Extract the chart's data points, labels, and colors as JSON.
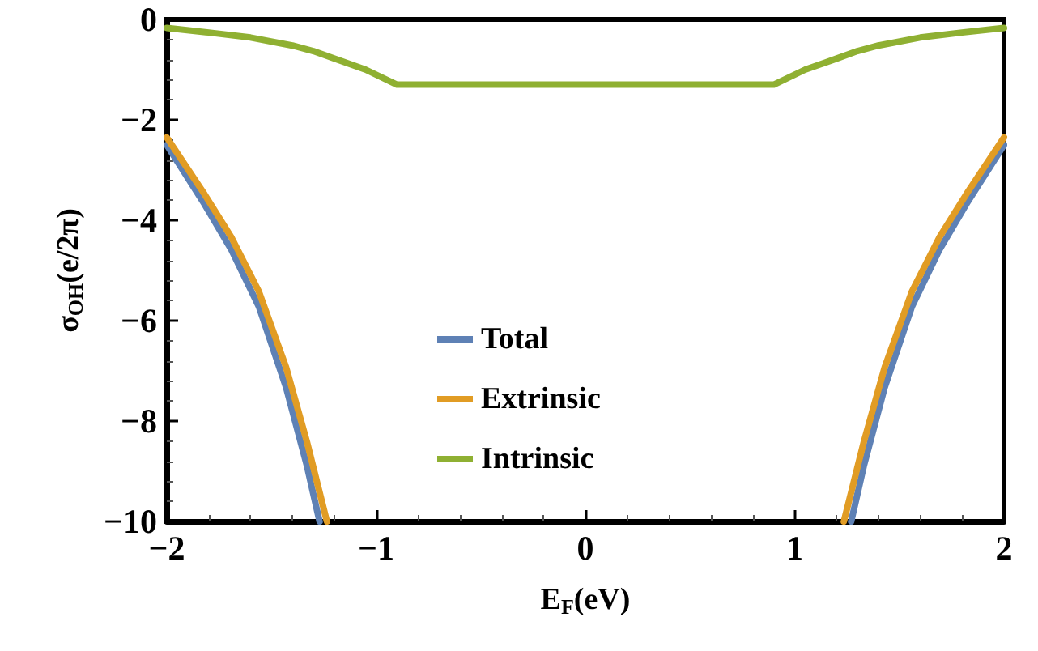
{
  "chart_data": {
    "type": "line",
    "xlabel": "E$_{F}$(eV)",
    "ylabel": "σ$_{OH}$(e/2π)",
    "xlim": [
      -2,
      2
    ],
    "xticks": [
      -2,
      -1,
      0,
      1,
      2
    ],
    "ylim": [
      -10,
      0
    ],
    "yticks": [
      -10,
      -8,
      -6,
      -4,
      -2,
      0
    ],
    "grid": false,
    "legend": "bottom",
    "marker": "none",
    "line_style": "solid",
    "series": [
      {
        "name": "Total",
        "color": "#5e81b5",
        "x": [
          -2,
          -1.82,
          -1.69,
          -1.56,
          -1.43,
          -1.33,
          -1.27,
          0,
          1.27,
          1.33,
          1.43,
          1.56,
          1.69,
          1.82,
          2
        ],
        "values": [
          -2.5,
          -3.68,
          -4.6,
          -5.72,
          -7.33,
          -8.9,
          -10,
          null,
          -10,
          -8.9,
          -7.33,
          -5.72,
          -4.6,
          -3.68,
          -2.5
        ]
      },
      {
        "name": "Extrinsic",
        "color": "#e19c24",
        "x": [
          -2,
          -1.82,
          -1.69,
          -1.56,
          -1.43,
          -1.33,
          -1.235,
          0,
          1.235,
          1.33,
          1.43,
          1.56,
          1.69,
          1.82,
          2
        ],
        "values": [
          -2.35,
          -3.48,
          -4.35,
          -5.42,
          -6.93,
          -8.42,
          -10,
          null,
          -10,
          -8.42,
          -6.93,
          -5.42,
          -4.35,
          -3.48,
          -2.35
        ]
      },
      {
        "name": "Intrinsic",
        "color": "#8fb032",
        "x": [
          -2,
          -1.8,
          -1.6,
          -1.4,
          -1.3,
          -1.2,
          -1.05,
          -0.9,
          0.9,
          1.05,
          1.2,
          1.3,
          1.4,
          1.6,
          1.8,
          2
        ],
        "values": [
          -0.17,
          -0.26,
          -0.36,
          -0.52,
          -0.63,
          -0.78,
          -1.0,
          -1.3,
          -1.3,
          -1.0,
          -0.78,
          -0.63,
          -0.52,
          -0.36,
          -0.26,
          -0.17
        ]
      }
    ]
  }
}
